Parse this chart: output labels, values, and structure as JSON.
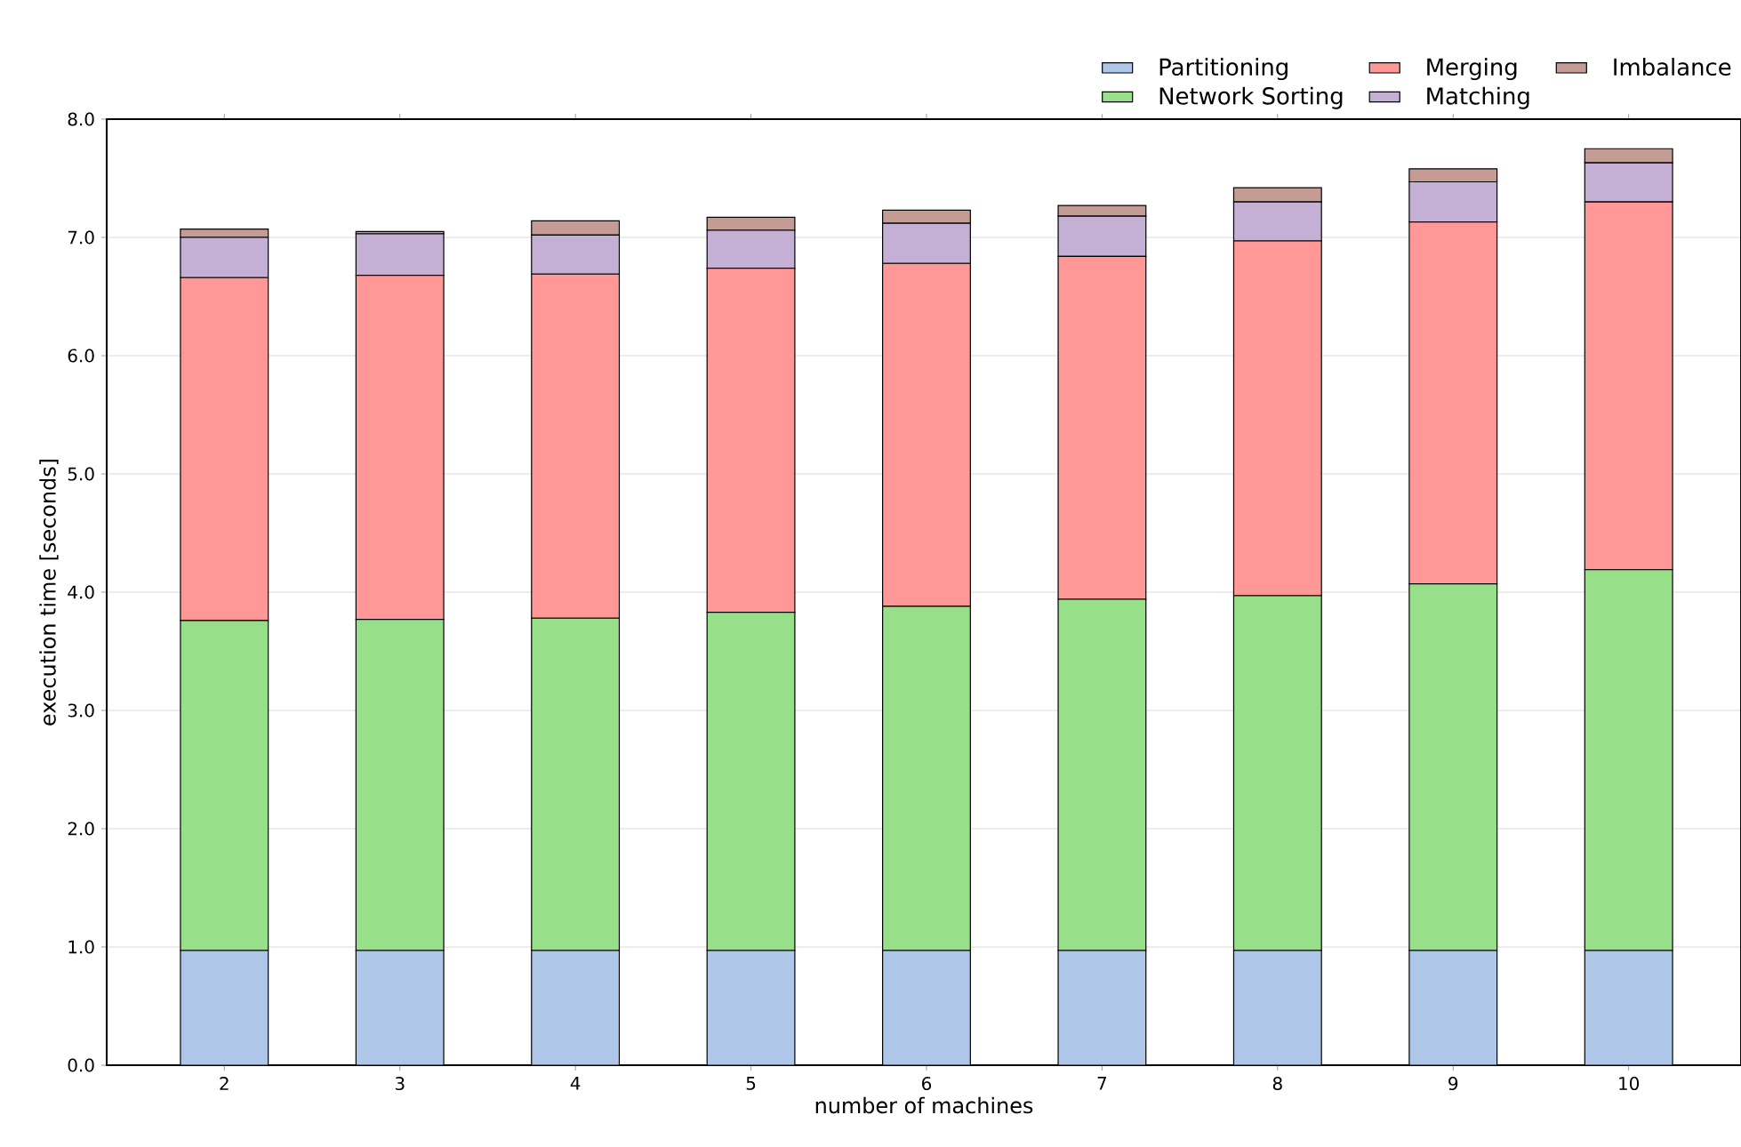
{
  "chart_data": {
    "type": "bar",
    "stacked": true,
    "xlabel": "number of machines",
    "ylabel": "execution time [seconds]",
    "categories": [
      "2",
      "3",
      "4",
      "5",
      "6",
      "7",
      "8",
      "9",
      "10"
    ],
    "series": [
      {
        "name": "Partitioning",
        "color": "#aec7e8",
        "values": [
          0.97,
          0.97,
          0.97,
          0.97,
          0.97,
          0.97,
          0.97,
          0.97,
          0.97
        ]
      },
      {
        "name": "Network Sorting",
        "color": "#98df8a",
        "values": [
          2.79,
          2.8,
          2.81,
          2.86,
          2.91,
          2.97,
          3.0,
          3.1,
          3.22
        ]
      },
      {
        "name": "Merging",
        "color": "#ff9896",
        "values": [
          2.9,
          2.91,
          2.91,
          2.91,
          2.9,
          2.9,
          3.0,
          3.06,
          3.11
        ]
      },
      {
        "name": "Matching",
        "color": "#c5b0d5",
        "values": [
          0.34,
          0.35,
          0.33,
          0.32,
          0.34,
          0.34,
          0.33,
          0.34,
          0.33
        ]
      },
      {
        "name": "Imbalance",
        "color": "#c49c94",
        "values": [
          0.07,
          0.02,
          0.12,
          0.11,
          0.11,
          0.09,
          0.12,
          0.11,
          0.12
        ]
      }
    ],
    "ylim": [
      0,
      8
    ],
    "yticks": [
      {
        "value": 0,
        "label": "0.0"
      },
      {
        "value": 1,
        "label": "1.0"
      },
      {
        "value": 2,
        "label": "2.0"
      },
      {
        "value": 3,
        "label": "3.0"
      },
      {
        "value": 4,
        "label": "4.0"
      },
      {
        "value": 5,
        "label": "5.0"
      },
      {
        "value": 6,
        "label": "6.0"
      },
      {
        "value": 7,
        "label": "7.0"
      },
      {
        "value": 8,
        "label": "8.0"
      }
    ],
    "grid": "y",
    "legend": "top"
  }
}
